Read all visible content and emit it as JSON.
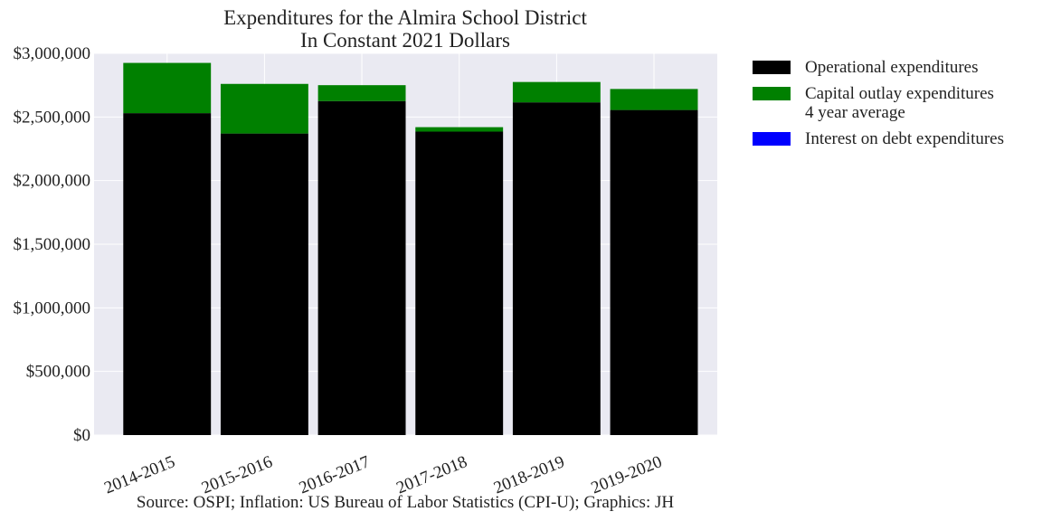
{
  "chart_data": {
    "type": "bar",
    "stacked": true,
    "title": "Expenditures for the Almira School District\nIn Constant 2021 Dollars",
    "xlabel": "",
    "ylabel": "",
    "caption": "Source: OSPI; Inflation: US Bureau of Labor Statistics (CPI-U); Graphics: JH",
    "categories": [
      "2014-2015",
      "2015-2016",
      "2016-2017",
      "2017-2018",
      "2018-2019",
      "2019-2020"
    ],
    "ylim": [
      0,
      3000000
    ],
    "yticks": [
      0,
      500000,
      1000000,
      1500000,
      2000000,
      2500000,
      3000000
    ],
    "ytick_labels": [
      "$0",
      "$500,000",
      "$1,000,000",
      "$1,500,000",
      "$2,000,000",
      "$2,500,000",
      "$3,000,000"
    ],
    "grid": true,
    "legend_position": "outside-right-top",
    "series": [
      {
        "name": "Operational expenditures",
        "color": "#000000",
        "values": [
          2530000,
          2370000,
          2625000,
          2385000,
          2615000,
          2555000
        ]
      },
      {
        "name": "Capital outlay expenditures\n4 year average",
        "color": "#008000",
        "values": [
          395000,
          390000,
          125000,
          35000,
          160000,
          165000
        ]
      },
      {
        "name": "Interest on debt expenditures",
        "color": "#0000ff",
        "values": [
          0,
          0,
          0,
          0,
          0,
          0
        ]
      }
    ]
  }
}
